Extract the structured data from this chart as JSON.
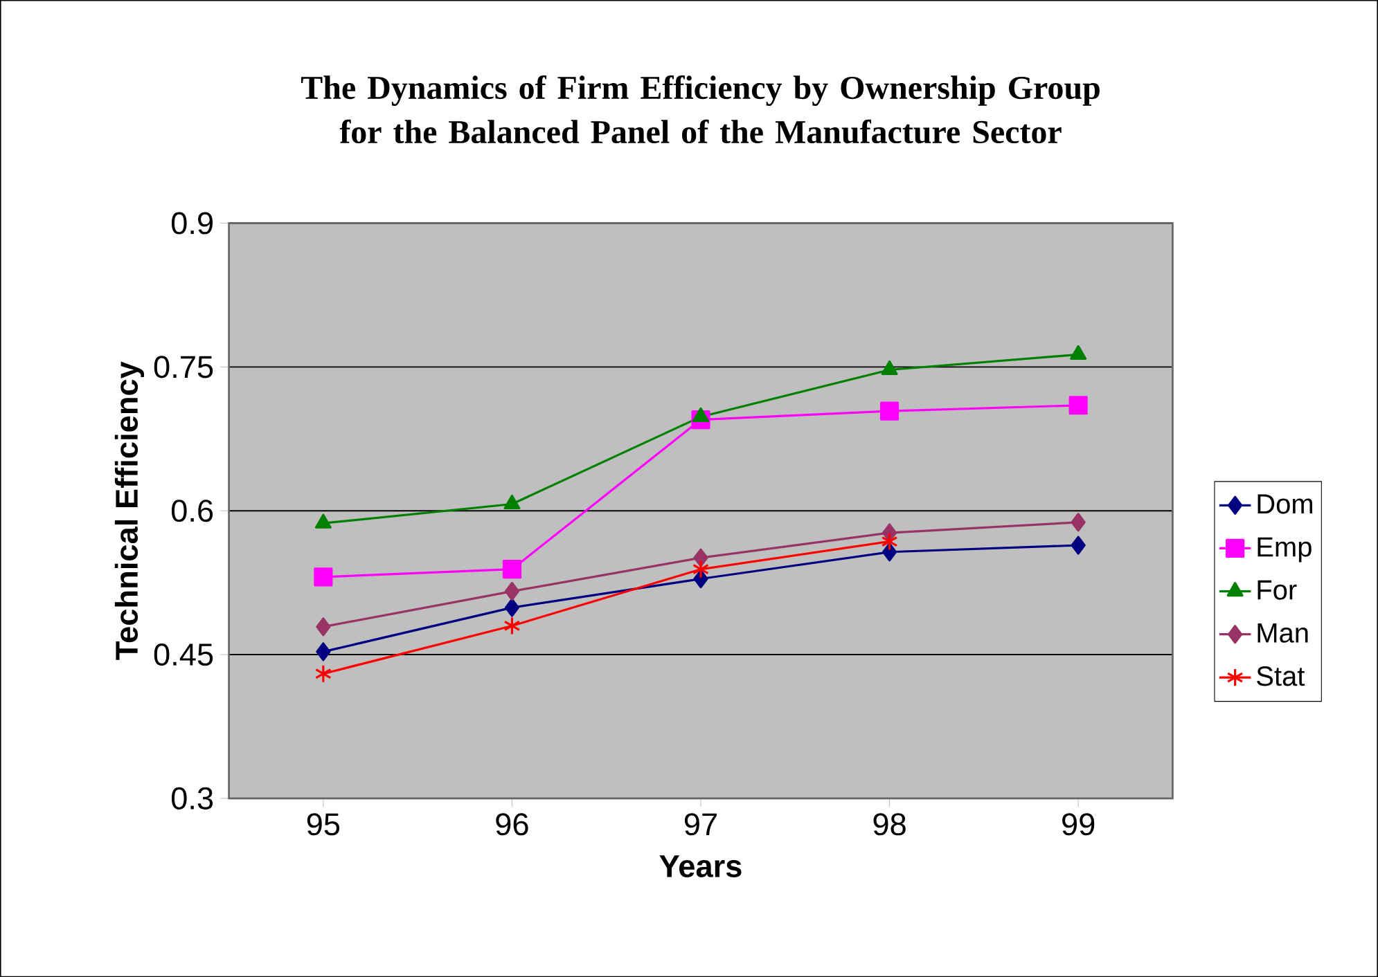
{
  "chart_data": {
    "type": "line",
    "title": "The Dynamics of Firm Efficiency by Ownership Group for the Balanced Panel of the Manufacture Sector",
    "xlabel": "Years",
    "ylabel": "Technical Efficiency",
    "categories": [
      "95",
      "96",
      "97",
      "98",
      "99"
    ],
    "ylim": [
      0.3,
      0.9
    ],
    "yticks": [
      0.3,
      0.45,
      0.6,
      0.75,
      0.9
    ],
    "grid": "y",
    "legend": "right",
    "series": [
      {
        "name": "Dom",
        "color": "#000080",
        "marker": "diamond",
        "values": [
          0.453,
          0.499,
          0.529,
          0.557,
          0.564
        ]
      },
      {
        "name": "Emp",
        "color": "#ff00ff",
        "marker": "square",
        "values": [
          0.531,
          0.539,
          0.695,
          0.704,
          0.71
        ]
      },
      {
        "name": "For",
        "color": "#008000",
        "marker": "triangle",
        "values": [
          0.587,
          0.607,
          0.698,
          0.747,
          0.763
        ]
      },
      {
        "name": "Man",
        "color": "#993366",
        "marker": "diamond",
        "values": [
          0.479,
          0.516,
          0.551,
          0.577,
          0.588
        ]
      },
      {
        "name": "Stat",
        "color": "#ff0000",
        "marker": "cross",
        "values": [
          0.43,
          0.48,
          0.539,
          0.568,
          null
        ]
      }
    ]
  }
}
